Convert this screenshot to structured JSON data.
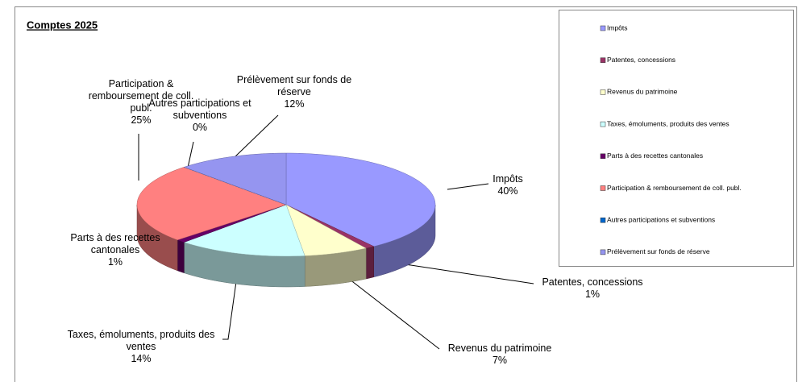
{
  "chart_data": {
    "type": "pie",
    "title": "Comptes 2025",
    "categories": [
      "Impôts",
      "Patentes, concessions",
      "Revenus du patrimoine",
      "Taxes, émoluments, produits des ventes",
      "Parts à des recettes cantonales",
      "Participation & remboursement de coll. publ.",
      "Autres participations et subventions",
      "Prélèvement sur fonds de réserve"
    ],
    "values": [
      40,
      1,
      7,
      14,
      1,
      25,
      0,
      12
    ],
    "value_labels": [
      "40%",
      "1%",
      "7%",
      "14%",
      "1%",
      "25%",
      "0%",
      "12%"
    ],
    "colors": [
      "#9999ff",
      "#993366",
      "#ffffcc",
      "#ccffff",
      "#660066",
      "#ff8080",
      "#0066cc",
      "#9595f0"
    ],
    "legend": "right"
  }
}
